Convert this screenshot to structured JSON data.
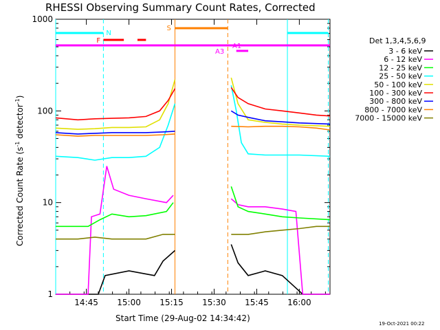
{
  "chart_data": {
    "type": "line",
    "title": "RHESSI Observing Summary Count Rates, Corrected",
    "xlabel": "Start Time (29-Aug-02 14:34:42)",
    "ylabel": "Corrected Count Rate (s⁻¹ detector⁻¹)",
    "ylabel_main": "Corrected Count Rate (s",
    "ylabel_mid": " detector",
    "ylabel_end": ")",
    "ylabel_sup": "-1",
    "yscale": "log",
    "xlim_min": [
      14.57,
      16.18
    ],
    "ylim": [
      1,
      1000
    ],
    "xticks": [
      "14:45",
      "15:00",
      "15:15",
      "15:30",
      "15:45",
      "16:00"
    ],
    "xtick_values_min": [
      14.75,
      15.0,
      15.25,
      15.5,
      15.75,
      16.0
    ],
    "yticks": [
      "1",
      "10",
      "100",
      "1000"
    ],
    "ytick_values": [
      1,
      10,
      100,
      1000
    ],
    "legend_title": "Det 1,3,4,5,6,9",
    "legend_placement": "right",
    "series": [
      {
        "name": "3 - 6 keV",
        "color": "#000000",
        "pre": [
          [
            14.57,
            1.0
          ],
          [
            14.82,
            1.0
          ],
          [
            14.86,
            1.6
          ],
          [
            15.0,
            1.8
          ],
          [
            15.15,
            1.6
          ],
          [
            15.2,
            2.3
          ],
          [
            15.27,
            3.0
          ]
        ],
        "post": [
          [
            15.6,
            3.5
          ],
          [
            15.64,
            2.2
          ],
          [
            15.7,
            1.6
          ],
          [
            15.8,
            1.8
          ],
          [
            15.9,
            1.6
          ],
          [
            16.02,
            1.0
          ],
          [
            16.18,
            1.0
          ]
        ]
      },
      {
        "name": "6 - 12 keV",
        "color": "#ff00ff",
        "pre": [
          [
            14.57,
            1.0
          ],
          [
            14.76,
            1.0
          ],
          [
            14.78,
            7.0
          ],
          [
            14.83,
            7.5
          ],
          [
            14.87,
            25
          ],
          [
            14.91,
            14
          ],
          [
            15.0,
            12
          ],
          [
            15.1,
            11
          ],
          [
            15.22,
            10
          ],
          [
            15.26,
            12
          ]
        ],
        "post": [
          [
            15.6,
            11
          ],
          [
            15.64,
            9.5
          ],
          [
            15.7,
            9.0
          ],
          [
            15.8,
            9.0
          ],
          [
            15.9,
            8.5
          ],
          [
            15.98,
            8.0
          ],
          [
            16.02,
            1.0
          ],
          [
            16.18,
            1.0
          ]
        ]
      },
      {
        "name": "12 - 25 keV",
        "color": "#00ff00",
        "pre": [
          [
            14.57,
            5.5
          ],
          [
            14.76,
            5.5
          ],
          [
            14.83,
            6.5
          ],
          [
            14.9,
            7.5
          ],
          [
            15.0,
            7.0
          ],
          [
            15.1,
            7.2
          ],
          [
            15.22,
            8.0
          ],
          [
            15.26,
            10
          ]
        ],
        "post": [
          [
            15.6,
            15
          ],
          [
            15.64,
            9.0
          ],
          [
            15.7,
            8.0
          ],
          [
            15.8,
            7.5
          ],
          [
            15.9,
            7.0
          ],
          [
            16.0,
            6.8
          ],
          [
            16.18,
            6.5
          ]
        ]
      },
      {
        "name": "25 - 50 keV",
        "color": "#00ffff",
        "pre": [
          [
            14.57,
            32
          ],
          [
            14.7,
            31
          ],
          [
            14.8,
            29
          ],
          [
            14.9,
            31
          ],
          [
            15.0,
            31
          ],
          [
            15.1,
            32
          ],
          [
            15.18,
            40
          ],
          [
            15.23,
            70
          ],
          [
            15.27,
            120
          ]
        ],
        "post": [
          [
            15.6,
            190
          ],
          [
            15.63,
            100
          ],
          [
            15.66,
            45
          ],
          [
            15.7,
            34
          ],
          [
            15.8,
            33
          ],
          [
            15.9,
            33
          ],
          [
            16.0,
            33
          ],
          [
            16.18,
            32
          ]
        ]
      },
      {
        "name": "50 - 100 keV",
        "color": "#e0e000",
        "pre": [
          [
            14.57,
            65
          ],
          [
            14.7,
            63
          ],
          [
            14.8,
            64
          ],
          [
            14.9,
            66
          ],
          [
            15.0,
            66
          ],
          [
            15.1,
            67
          ],
          [
            15.18,
            80
          ],
          [
            15.23,
            120
          ],
          [
            15.27,
            220
          ]
        ],
        "post": [
          [
            15.6,
            230
          ],
          [
            15.64,
            120
          ],
          [
            15.7,
            80
          ],
          [
            15.8,
            75
          ],
          [
            15.9,
            72
          ],
          [
            16.0,
            70
          ],
          [
            16.18,
            68
          ]
        ]
      },
      {
        "name": "100 - 300 keV",
        "color": "#ff0000",
        "pre": [
          [
            14.57,
            84
          ],
          [
            14.7,
            80
          ],
          [
            14.8,
            82
          ],
          [
            14.9,
            83
          ],
          [
            15.0,
            84
          ],
          [
            15.1,
            87
          ],
          [
            15.18,
            100
          ],
          [
            15.23,
            130
          ],
          [
            15.27,
            175
          ]
        ],
        "post": [
          [
            15.6,
            180
          ],
          [
            15.64,
            140
          ],
          [
            15.7,
            120
          ],
          [
            15.8,
            105
          ],
          [
            15.9,
            100
          ],
          [
            16.0,
            95
          ],
          [
            16.1,
            90
          ],
          [
            16.18,
            88
          ]
        ]
      },
      {
        "name": "300 - 800 keV",
        "color": "#0000ff",
        "pre": [
          [
            14.57,
            58
          ],
          [
            14.7,
            56
          ],
          [
            14.8,
            57
          ],
          [
            14.9,
            58
          ],
          [
            15.0,
            58
          ],
          [
            15.1,
            58
          ],
          [
            15.2,
            59
          ],
          [
            15.27,
            60
          ]
        ],
        "post": [
          [
            15.6,
            100
          ],
          [
            15.64,
            90
          ],
          [
            15.7,
            85
          ],
          [
            15.8,
            78
          ],
          [
            15.9,
            76
          ],
          [
            16.0,
            74
          ],
          [
            16.18,
            72
          ]
        ]
      },
      {
        "name": "800 - 7000 keV",
        "color": "#ff8000",
        "pre": [
          [
            14.57,
            55
          ],
          [
            14.7,
            53
          ],
          [
            14.8,
            54
          ],
          [
            14.9,
            54
          ],
          [
            15.0,
            54
          ],
          [
            15.1,
            54
          ],
          [
            15.2,
            55
          ],
          [
            15.27,
            56
          ]
        ],
        "post": [
          [
            15.6,
            68
          ],
          [
            15.7,
            67
          ],
          [
            15.8,
            68
          ],
          [
            15.9,
            68
          ],
          [
            16.0,
            67
          ],
          [
            16.1,
            65
          ],
          [
            16.18,
            62
          ]
        ]
      },
      {
        "name": "7000 - 15000 keV",
        "color": "#808000",
        "pre": [
          [
            14.57,
            4.0
          ],
          [
            14.7,
            4.0
          ],
          [
            14.8,
            4.2
          ],
          [
            14.9,
            4.0
          ],
          [
            15.0,
            4.0
          ],
          [
            15.1,
            4.0
          ],
          [
            15.2,
            4.5
          ],
          [
            15.27,
            4.5
          ]
        ],
        "post": [
          [
            15.6,
            4.5
          ],
          [
            15.7,
            4.5
          ],
          [
            15.8,
            4.8
          ],
          [
            15.9,
            5.0
          ],
          [
            16.0,
            5.2
          ],
          [
            16.1,
            5.5
          ],
          [
            16.18,
            5.5
          ]
        ]
      }
    ],
    "gap": [
      15.27,
      15.6
    ],
    "annotations": {
      "night_label": "N",
      "flare_label": "F",
      "saa_label": "S",
      "attenuator_label": "A1",
      "decimation_label": "A3"
    },
    "annotation_colors": {
      "night": "#00ffff",
      "flare": "#ff0000",
      "saa": "#ff8000",
      "attenuator": "#ff00ff"
    },
    "vertical_markers": [
      {
        "x": 14.57,
        "style": "solid",
        "color": "#00ffff"
      },
      {
        "x": 14.85,
        "style": "dashed",
        "color": "#00ffff"
      },
      {
        "x": 15.27,
        "style": "solid",
        "color": "#ff8000"
      },
      {
        "x": 15.58,
        "style": "dashed",
        "color": "#ff8000"
      },
      {
        "x": 15.93,
        "style": "solid",
        "color": "#00ffff"
      },
      {
        "x": 16.17,
        "style": "dashed",
        "color": "#00ffff"
      }
    ],
    "night_bars": [
      [
        14.57,
        14.85
      ],
      [
        15.93,
        16.17
      ]
    ],
    "flare_bars": [
      [
        14.85,
        14.97
      ],
      [
        15.05,
        15.1
      ]
    ],
    "saa_bar": [
      15.27,
      15.58
    ],
    "attenuator_bar": [
      14.57,
      16.18
    ],
    "decimation_bar": [
      15.63,
      15.7
    ]
  },
  "timestamp": "19-Oct-2021 00:22"
}
